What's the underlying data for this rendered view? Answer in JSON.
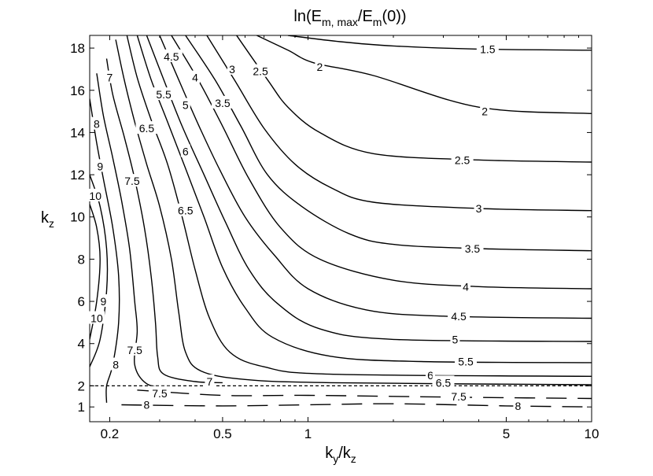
{
  "chart_data": {
    "type": "contour",
    "title": {
      "base": "ln(E",
      "sub1": "m, max",
      "mid": "/E",
      "sub2": "m",
      "tail": "(0))"
    },
    "xlabel": {
      "base": "k",
      "sub1": "y",
      "mid": "/k",
      "sub2": "z"
    },
    "ylabel": {
      "base": "k",
      "sub1": "z"
    },
    "x_scale": "log",
    "xlim": [
      0.17,
      10
    ],
    "ylim": [
      0.3,
      18.6
    ],
    "x_ticks": [
      0.2,
      0.5,
      1,
      5,
      10
    ],
    "x_tick_labels": [
      "0.2",
      "0.5",
      "1",
      "5",
      "10"
    ],
    "y_ticks": [
      1,
      2,
      4,
      6,
      8,
      10,
      12,
      14,
      16,
      18
    ],
    "y_tick_labels": [
      "1",
      "2",
      "4",
      "6",
      "8",
      "10",
      "12",
      "14",
      "16",
      "18"
    ],
    "reference_line": {
      "y": 2.0,
      "style": "dotted"
    },
    "contours": [
      {
        "level": 1.5,
        "label": "1.5",
        "points": [
          [
            0.85,
            18.6
          ],
          [
            1.3,
            18.3
          ],
          [
            2.0,
            18.1
          ],
          [
            4.0,
            17.95
          ],
          [
            10,
            17.9
          ]
        ],
        "label_at": [
          4.3,
          17.95
        ]
      },
      {
        "level": 2.0,
        "label": "2",
        "points": [
          [
            0.66,
            18.6
          ],
          [
            0.85,
            17.9
          ],
          [
            1.05,
            17.3
          ],
          [
            1.7,
            16.7
          ],
          [
            4.0,
            15.2
          ],
          [
            10,
            14.9
          ]
        ],
        "label_at": [
          4.2,
          15.0
        ],
        "label_at2": [
          1.1,
          17.1
        ]
      },
      {
        "level": 2.5,
        "label": "2.5",
        "points": [
          [
            0.56,
            18.6
          ],
          [
            0.72,
            16.5
          ],
          [
            0.85,
            15.2
          ],
          [
            1.1,
            14.0
          ],
          [
            1.7,
            13.0
          ],
          [
            4.0,
            12.7
          ],
          [
            10,
            12.6
          ]
        ],
        "label_at": [
          3.5,
          12.7
        ],
        "label_at2": [
          0.68,
          16.9
        ]
      },
      {
        "level": 3.0,
        "label": "3",
        "points": [
          [
            0.44,
            18.6
          ],
          [
            0.55,
            16.5
          ],
          [
            0.7,
            14.2
          ],
          [
            0.9,
            12.5
          ],
          [
            1.2,
            11.4
          ],
          [
            1.7,
            10.7
          ],
          [
            4.0,
            10.4
          ],
          [
            10,
            10.3
          ]
        ],
        "label_at": [
          4.0,
          10.4
        ],
        "label_at2": [
          0.54,
          17.0
        ]
      },
      {
        "level": 3.5,
        "label": "3.5",
        "points": [
          [
            0.37,
            18.6
          ],
          [
            0.47,
            16.5
          ],
          [
            0.58,
            14.3
          ],
          [
            0.72,
            12.0
          ],
          [
            0.95,
            10.5
          ],
          [
            1.4,
            9.2
          ],
          [
            2.0,
            8.7
          ],
          [
            4.0,
            8.5
          ],
          [
            10,
            8.4
          ]
        ],
        "label_at": [
          3.8,
          8.5
        ],
        "label_at2": [
          0.5,
          15.4
        ]
      },
      {
        "level": 4.0,
        "label": "4",
        "points": [
          [
            0.33,
            18.6
          ],
          [
            0.41,
            16.5
          ],
          [
            0.5,
            14.3
          ],
          [
            0.62,
            11.8
          ],
          [
            0.8,
            9.5
          ],
          [
            1.1,
            8.0
          ],
          [
            2.0,
            7.0
          ],
          [
            4.0,
            6.7
          ],
          [
            10,
            6.6
          ]
        ],
        "label_at": [
          3.6,
          6.7
        ],
        "label_at2": [
          0.4,
          16.6
        ]
      },
      {
        "level": 4.5,
        "label": "4.5",
        "points": [
          [
            0.3,
            18.6
          ],
          [
            0.35,
            16.5
          ],
          [
            0.41,
            14.4
          ],
          [
            0.49,
            12.2
          ],
          [
            0.6,
            10.0
          ],
          [
            0.76,
            8.2
          ],
          [
            1.0,
            6.6
          ],
          [
            1.6,
            5.6
          ],
          [
            3.0,
            5.3
          ],
          [
            10,
            5.2
          ]
        ],
        "label_at": [
          3.4,
          5.3
        ],
        "label_at2": [
          0.33,
          17.6
        ]
      },
      {
        "level": 5.0,
        "label": "5",
        "points": [
          [
            0.27,
            18.6
          ],
          [
            0.31,
            16.5
          ],
          [
            0.36,
            14.3
          ],
          [
            0.43,
            12.0
          ],
          [
            0.51,
            9.8
          ],
          [
            0.62,
            7.5
          ],
          [
            0.78,
            5.9
          ],
          [
            1.1,
            4.7
          ],
          [
            2.0,
            4.2
          ],
          [
            10,
            4.1
          ]
        ],
        "label_at": [
          3.3,
          4.2
        ],
        "label_at2": [
          0.37,
          15.3
        ]
      },
      {
        "level": 5.5,
        "label": "5.5",
        "points": [
          [
            0.25,
            18.6
          ],
          [
            0.28,
            16.5
          ],
          [
            0.32,
            14.5
          ],
          [
            0.37,
            12.3
          ],
          [
            0.43,
            10.0
          ],
          [
            0.5,
            7.6
          ],
          [
            0.6,
            5.7
          ],
          [
            0.75,
            4.3
          ],
          [
            1.2,
            3.4
          ],
          [
            2.5,
            3.15
          ],
          [
            10,
            3.1
          ]
        ],
        "label_at": [
          3.6,
          3.15
        ],
        "label_at2": [
          0.31,
          15.8
        ]
      },
      {
        "level": 6.0,
        "label": "6",
        "points": [
          [
            0.23,
            18.6
          ],
          [
            0.25,
            16.6
          ],
          [
            0.28,
            14.6
          ],
          [
            0.32,
            12.5
          ],
          [
            0.36,
            10.0
          ],
          [
            0.4,
            7.5
          ],
          [
            0.45,
            5.2
          ],
          [
            0.53,
            3.6
          ],
          [
            0.7,
            2.9
          ],
          [
            1.2,
            2.55
          ],
          [
            10,
            2.45
          ]
        ],
        "label_at": [
          2.7,
          2.5
        ],
        "label_at2": [
          0.37,
          13.1
        ]
      },
      {
        "level": 6.5,
        "label": "6.5",
        "points": [
          [
            0.21,
            18.4
          ],
          [
            0.225,
            16.5
          ],
          [
            0.245,
            14.5
          ],
          [
            0.27,
            12.5
          ],
          [
            0.3,
            10.5
          ],
          [
            0.33,
            8.0
          ],
          [
            0.35,
            5.5
          ],
          [
            0.37,
            3.6
          ],
          [
            0.42,
            2.7
          ],
          [
            0.6,
            2.3
          ],
          [
            1.2,
            2.15
          ],
          [
            10,
            2.05
          ]
        ],
        "label_at": [
          3.0,
          2.15
        ],
        "label_at2": [
          0.27,
          14.2
        ],
        "label_at3": [
          0.37,
          10.3
        ]
      },
      {
        "level": 7.0,
        "label": "7",
        "points": [
          [
            0.195,
            17.5
          ],
          [
            0.205,
            15.8
          ],
          [
            0.225,
            13.8
          ],
          [
            0.245,
            11.8
          ],
          [
            0.265,
            9.5
          ],
          [
            0.28,
            7.2
          ],
          [
            0.29,
            5.0
          ],
          [
            0.295,
            3.4
          ],
          [
            0.31,
            2.55
          ],
          [
            0.4,
            2.2
          ],
          [
            0.5,
            2.15
          ]
        ],
        "label_at": [
          0.45,
          2.2
        ],
        "label_at2": [
          0.2,
          16.6
        ]
      },
      {
        "level": 7.5,
        "label": "7.5",
        "points": [
          [
            0.18,
            16.8
          ],
          [
            0.19,
            14.8
          ],
          [
            0.205,
            12.8
          ],
          [
            0.22,
            10.8
          ],
          [
            0.235,
            8.5
          ],
          [
            0.245,
            6.0
          ],
          [
            0.25,
            4.6
          ],
          [
            0.245,
            3.0
          ],
          [
            0.27,
            2.1
          ],
          [
            0.32,
            1.9
          ]
        ],
        "label_at": [
          0.24,
          11.7
        ],
        "label_at2": [
          0.245,
          3.7
        ]
      },
      {
        "level": 8.0,
        "label": "8",
        "points": [
          [
            0.17,
            15.6
          ],
          [
            0.18,
            13.5
          ],
          [
            0.19,
            11.8
          ],
          [
            0.205,
            9.5
          ],
          [
            0.215,
            7.2
          ],
          [
            0.215,
            5.0
          ],
          [
            0.205,
            3.0
          ],
          [
            0.195,
            2.0
          ],
          [
            0.195,
            1.2
          ]
        ],
        "label_at": [
          0.18,
          14.4
        ],
        "label_at2": [
          0.21,
          3.0
        ]
      },
      {
        "level": 9.0,
        "label": "9",
        "points": [
          [
            0.17,
            12.0
          ],
          [
            0.185,
            10.5
          ],
          [
            0.195,
            8.5
          ],
          [
            0.195,
            6.5
          ],
          [
            0.185,
            4.2
          ],
          [
            0.17,
            2.9
          ]
        ],
        "label_at": [
          0.185,
          12.4
        ],
        "label_at2": [
          0.19,
          6.0
        ]
      },
      {
        "level": 10.0,
        "label": "10",
        "points": [
          [
            0.17,
            10.6
          ],
          [
            0.18,
            9.5
          ],
          [
            0.185,
            8.0
          ],
          [
            0.18,
            6.0
          ],
          [
            0.17,
            4.2
          ]
        ],
        "label_at": [
          0.178,
          11.0
        ],
        "label_at2": [
          0.18,
          5.2
        ]
      }
    ],
    "low_contours": [
      {
        "level": 7.5,
        "label": "7.5",
        "style": "long-dash",
        "points": [
          [
            0.25,
            1.8
          ],
          [
            0.5,
            1.55
          ],
          [
            1.0,
            1.55
          ],
          [
            2.0,
            1.5
          ],
          [
            4.0,
            1.45
          ],
          [
            10,
            1.4
          ]
        ],
        "label_at": [
          0.3,
          1.65
        ],
        "label_at2": [
          3.4,
          1.5
        ]
      },
      {
        "level": 8.0,
        "label": "8",
        "style": "long-dash",
        "points": [
          [
            0.22,
            1.1
          ],
          [
            0.5,
            1.05
          ],
          [
            1.0,
            1.1
          ],
          [
            2.0,
            1.15
          ],
          [
            5.0,
            1.05
          ],
          [
            10,
            1.0
          ]
        ],
        "label_at": [
          0.27,
          1.1
        ],
        "label_at2": [
          5.5,
          1.05
        ]
      }
    ]
  }
}
